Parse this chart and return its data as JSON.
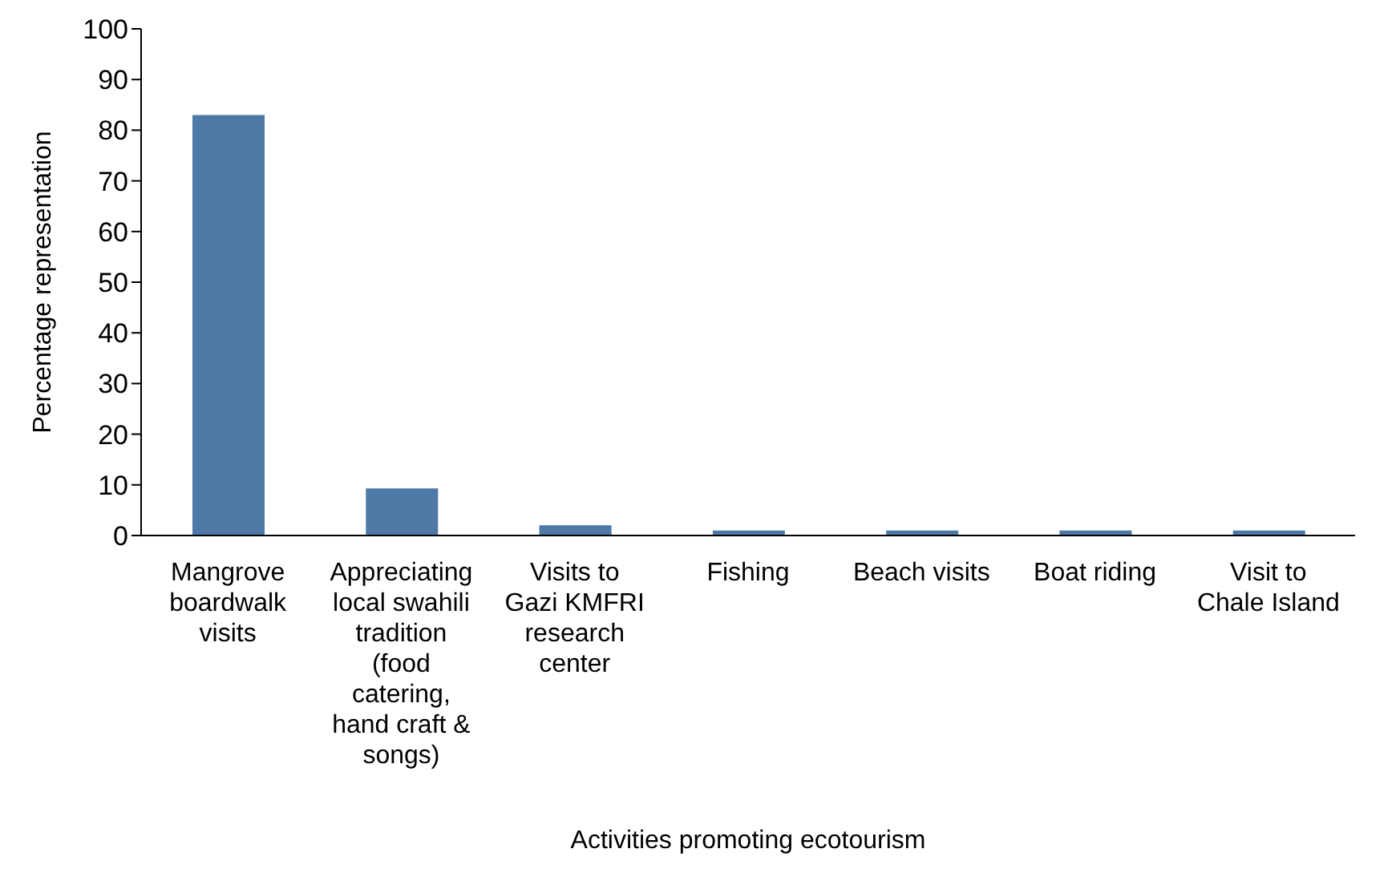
{
  "chart_data": {
    "type": "bar",
    "xlabel": "Activities promoting ecotourism",
    "ylabel": "Percentage representation",
    "categories": [
      "Mangrove boardwalk visits",
      "Appreciating local swahili tradition (food catering, hand craft & songs)",
      "Visits to Gazi KMFRI research center",
      "Fishing",
      "Beach visits",
      "Boat riding",
      "Visit to Chale Island"
    ],
    "values": [
      83,
      9.3,
      2,
      1,
      1,
      1,
      1
    ],
    "color": "#4e79a7",
    "ylim": [
      0,
      100
    ],
    "yticks": [
      0,
      10,
      20,
      30,
      40,
      50,
      60,
      70,
      80,
      90,
      100
    ],
    "grid": false,
    "legend": false
  }
}
